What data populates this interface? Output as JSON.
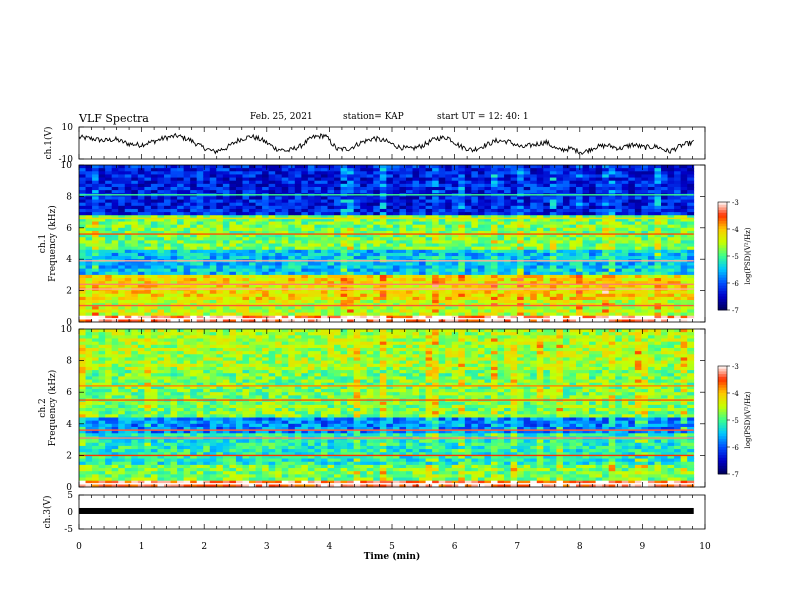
{
  "header": {
    "title": "VLF Spectra",
    "date": "Feb. 25, 2021",
    "station": "station= KAP",
    "start_time": "start  UT  =   12: 40: 1"
  },
  "chart_data": [
    {
      "type": "line",
      "panel": "ch1-waveform",
      "ylabel": "ch.1(V)",
      "ylim": [
        -10,
        10
      ],
      "y_ticks": [
        "10",
        "-10"
      ],
      "x_range_min": [
        0,
        9.82
      ],
      "description_values": "continuous noisy trace mostly between +2 and -8 V",
      "values_sampled": [
        3.5,
        2.8,
        1.5,
        2.2,
        -0.5,
        -1.2,
        0.8,
        3.2,
        4.5,
        2.0,
        -2.5,
        -5.5,
        -3.0,
        2.0,
        4.2,
        1.5,
        -3.5,
        -5.0,
        -2.0,
        3.5,
        4.8,
        -4.0,
        -3.5,
        0.5,
        3.0,
        1.0,
        -2.5,
        -3.8,
        -1.5,
        2.8,
        3.5,
        -2.0,
        -4.5,
        -1.5,
        1.5,
        0.8,
        -2.8,
        -1.0,
        0.5,
        -4.5,
        -3.5,
        -6.0,
        -2.5,
        -1.5,
        -3.5,
        -1.0,
        -2.8,
        -2.2,
        -5.5,
        -1.5,
        0.5
      ]
    },
    {
      "type": "heatmap",
      "panel": "ch1-spectrogram",
      "ylabel": "ch.1\nFrequency (kHz)",
      "ylim": [
        0,
        10
      ],
      "y_ticks": [
        "0",
        "2",
        "4",
        "6",
        "8",
        "10"
      ],
      "x_range_min": [
        0,
        9.82
      ],
      "colorbar": {
        "label": "log(PSD)(V²/Hz)",
        "range": [
          -7,
          -3
        ],
        "ticks": [
          "-3",
          "-4",
          "-5",
          "-6",
          "-7"
        ]
      },
      "bands_khz": [
        {
          "from": 0.0,
          "to": 0.5,
          "level": -3.3
        },
        {
          "from": 0.5,
          "to": 1.5,
          "level": -4.5
        },
        {
          "from": 1.5,
          "to": 3.0,
          "level": -4.2
        },
        {
          "from": 3.0,
          "to": 4.6,
          "level": -5.5
        },
        {
          "from": 4.6,
          "to": 6.8,
          "level": -4.8
        },
        {
          "from": 6.8,
          "to": 10.0,
          "level": -6.3
        }
      ],
      "lines_khz": [
        {
          "f": 0.2,
          "level": -3.0
        },
        {
          "f": 1.05,
          "level": -3.4
        },
        {
          "f": 2.1,
          "level": -3.2
        },
        {
          "f": 2.4,
          "level": -3.3
        },
        {
          "f": 3.9,
          "level": -3.2
        },
        {
          "f": 5.6,
          "level": -3.6
        },
        {
          "f": 6.6,
          "level": -4.2
        },
        {
          "f": 8.1,
          "level": -5.0
        }
      ]
    },
    {
      "type": "heatmap",
      "panel": "ch2-spectrogram",
      "ylabel": "ch.2\nFrequency (kHz)",
      "ylim": [
        0,
        10
      ],
      "y_ticks": [
        "0",
        "2",
        "4",
        "6",
        "8",
        "10"
      ],
      "x_range_min": [
        0,
        9.82
      ],
      "colorbar": {
        "label": "log(PSD)(V²/Hz)",
        "range": [
          -7,
          -3
        ],
        "ticks": [
          "-3",
          "-4",
          "-5",
          "-6",
          "-7"
        ]
      },
      "bands_khz": [
        {
          "from": 0.0,
          "to": 0.5,
          "level": -3.4
        },
        {
          "from": 0.5,
          "to": 1.5,
          "level": -4.8
        },
        {
          "from": 1.5,
          "to": 3.5,
          "level": -5.2
        },
        {
          "from": 3.5,
          "to": 4.5,
          "level": -5.8
        },
        {
          "from": 4.5,
          "to": 7.5,
          "level": -4.8
        },
        {
          "from": 7.5,
          "to": 10.0,
          "level": -4.6
        }
      ],
      "lines_khz": [
        {
          "f": 0.2,
          "level": -3.0
        },
        {
          "f": 2.0,
          "level": -3.5
        },
        {
          "f": 3.1,
          "level": -3.3
        },
        {
          "f": 3.6,
          "level": -3.4
        },
        {
          "f": 5.5,
          "level": -3.6
        },
        {
          "f": 6.4,
          "level": -3.8
        }
      ]
    },
    {
      "type": "line",
      "panel": "ch3-waveform",
      "ylabel": "ch.3(V)",
      "ylim": [
        -5,
        5
      ],
      "y_ticks": [
        "5",
        "0",
        "-5"
      ],
      "x_range_min": [
        0,
        9.82
      ],
      "constant_value": 0.3
    }
  ],
  "xaxis": {
    "label": "Time  (min)",
    "range": [
      0,
      10
    ],
    "ticks": [
      "0",
      "1",
      "2",
      "3",
      "4",
      "5",
      "6",
      "7",
      "8",
      "9",
      "10"
    ]
  },
  "colors": {
    "ink": "#000000",
    "colormap": [
      "#00005a",
      "#0000c8",
      "#0050ff",
      "#00c8ff",
      "#3cff8c",
      "#c8ff00",
      "#ffc800",
      "#ff3200",
      "#ffffff"
    ]
  }
}
